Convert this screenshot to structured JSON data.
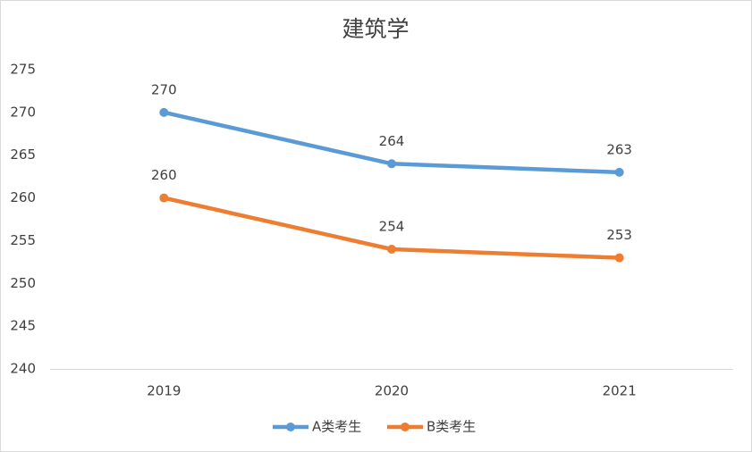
{
  "chart_data": {
    "type": "line",
    "title": "建筑学",
    "categories": [
      "2019",
      "2020",
      "2021"
    ],
    "series": [
      {
        "name": "A类考生",
        "color": "#5b9bd5",
        "values": [
          270,
          264,
          263
        ]
      },
      {
        "name": "B类考生",
        "color": "#ed7d31",
        "values": [
          260,
          254,
          253
        ]
      }
    ],
    "ylim": [
      240,
      275
    ],
    "yticks": [
      240,
      245,
      250,
      255,
      260,
      265,
      270,
      275
    ],
    "grid": false,
    "legend": "bottom",
    "data_labels": true
  }
}
